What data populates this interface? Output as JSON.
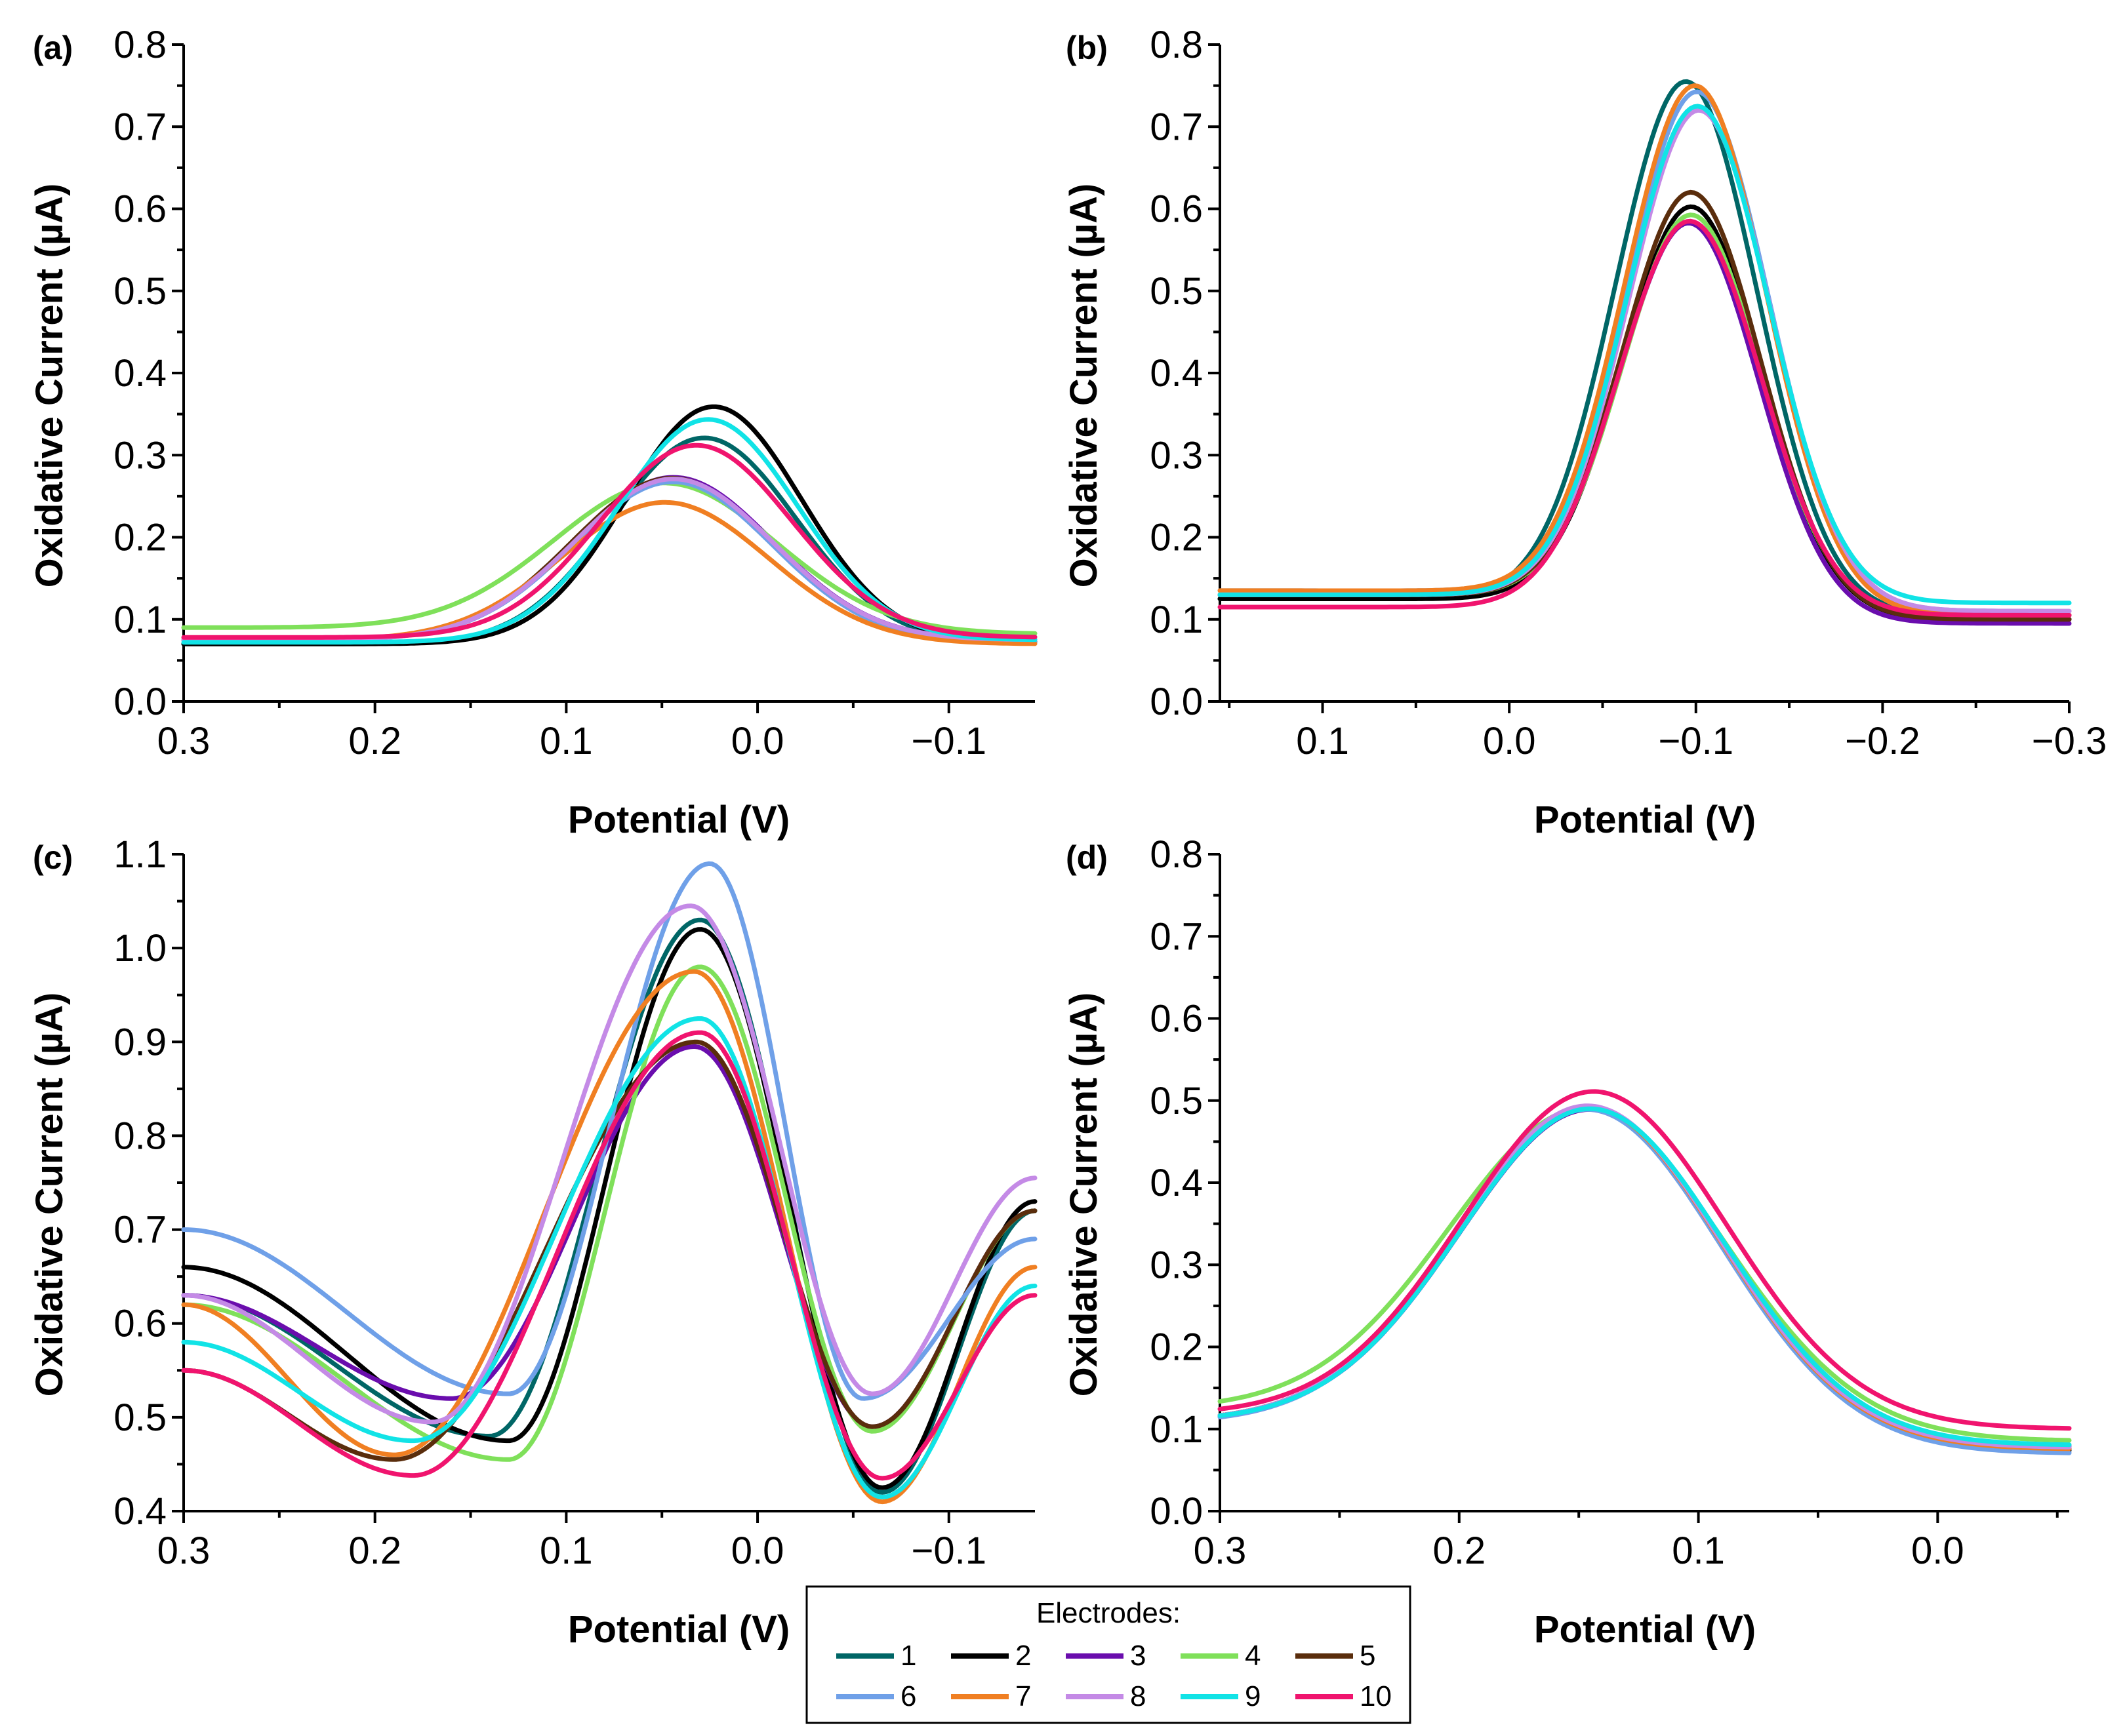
{
  "legend": {
    "title": "Electrodes:",
    "items": [
      {
        "label": "1",
        "color": "#006666"
      },
      {
        "label": "2",
        "color": "#000000"
      },
      {
        "label": "3",
        "color": "#6a0dad"
      },
      {
        "label": "4",
        "color": "#7fe05a"
      },
      {
        "label": "5",
        "color": "#5a2d0c"
      },
      {
        "label": "6",
        "color": "#6fa0e8"
      },
      {
        "label": "7",
        "color": "#f07f22"
      },
      {
        "label": "8",
        "color": "#c48ae6"
      },
      {
        "label": "9",
        "color": "#11e3e6"
      },
      {
        "label": "10",
        "color": "#f0146e"
      }
    ]
  },
  "chart_data": [
    {
      "panel": "(a)",
      "type": "line",
      "xlabel": "Potential (V)",
      "ylabel": "Oxidative Current (µA)",
      "xlim": [
        0.3,
        -0.145
      ],
      "ylim": [
        0.0,
        0.8
      ],
      "xticks": [
        "0.3",
        "0.2",
        "0.1",
        "0.0",
        "−0.1"
      ],
      "xtick_values": [
        0.3,
        0.2,
        0.1,
        0.0,
        -0.1
      ],
      "yticks": [
        "0.0",
        "0.1",
        "0.2",
        "0.3",
        "0.4",
        "0.5",
        "0.6",
        "0.7",
        "0.8"
      ],
      "ytick_values": [
        0.0,
        0.1,
        0.2,
        0.3,
        0.4,
        0.5,
        0.6,
        0.7,
        0.8
      ],
      "series": [
        {
          "name": "1",
          "baseline": 0.07,
          "tail": 0.072,
          "peak_x": 0.028,
          "height": 0.25,
          "width": 0.048
        },
        {
          "name": "2",
          "baseline": 0.07,
          "tail": 0.072,
          "peak_x": 0.023,
          "height": 0.288,
          "width": 0.046
        },
        {
          "name": "3",
          "baseline": 0.075,
          "tail": 0.075,
          "peak_x": 0.044,
          "height": 0.198,
          "width": 0.052
        },
        {
          "name": "4",
          "baseline": 0.09,
          "tail": 0.082,
          "peak_x": 0.048,
          "height": 0.18,
          "width": 0.058
        },
        {
          "name": "5",
          "baseline": 0.075,
          "tail": 0.075,
          "peak_x": 0.045,
          "height": 0.197,
          "width": 0.052
        },
        {
          "name": "6",
          "baseline": 0.075,
          "tail": 0.072,
          "peak_x": 0.044,
          "height": 0.194,
          "width": 0.052
        },
        {
          "name": "7",
          "baseline": 0.075,
          "tail": 0.07,
          "peak_x": 0.048,
          "height": 0.17,
          "width": 0.054
        },
        {
          "name": "8",
          "baseline": 0.075,
          "tail": 0.075,
          "peak_x": 0.044,
          "height": 0.196,
          "width": 0.052
        },
        {
          "name": "9",
          "baseline": 0.072,
          "tail": 0.075,
          "peak_x": 0.026,
          "height": 0.27,
          "width": 0.047
        },
        {
          "name": "10",
          "baseline": 0.078,
          "tail": 0.078,
          "peak_x": 0.032,
          "height": 0.234,
          "width": 0.05
        }
      ]
    },
    {
      "panel": "(b)",
      "type": "line",
      "xlabel": "Potential (V)",
      "ylabel": "Oxidative Current (µA)",
      "xlim": [
        0.155,
        -0.3
      ],
      "ylim": [
        0.0,
        0.8
      ],
      "xticks": [
        "0.1",
        "0.0",
        "−0.1",
        "−0.2",
        "−0.3"
      ],
      "xtick_values": [
        0.1,
        0.0,
        -0.1,
        -0.2,
        -0.3
      ],
      "yticks": [
        "0.0",
        "0.1",
        "0.2",
        "0.3",
        "0.4",
        "0.5",
        "0.6",
        "0.7",
        "0.8"
      ],
      "ytick_values": [
        0.0,
        0.1,
        0.2,
        0.3,
        0.4,
        0.5,
        0.6,
        0.7,
        0.8
      ],
      "series": [
        {
          "name": "1",
          "baseline": 0.125,
          "tail": 0.105,
          "peak_x": -0.095,
          "height": 0.64,
          "width": 0.038
        },
        {
          "name": "2",
          "baseline": 0.125,
          "tail": 0.1,
          "peak_x": -0.098,
          "height": 0.49,
          "width": 0.037
        },
        {
          "name": "3",
          "baseline": 0.13,
          "tail": 0.095,
          "peak_x": -0.097,
          "height": 0.47,
          "width": 0.037
        },
        {
          "name": "4",
          "baseline": 0.13,
          "tail": 0.105,
          "peak_x": -0.098,
          "height": 0.475,
          "width": 0.037
        },
        {
          "name": "5",
          "baseline": 0.13,
          "tail": 0.1,
          "peak_x": -0.098,
          "height": 0.505,
          "width": 0.037
        },
        {
          "name": "6",
          "baseline": 0.135,
          "tail": 0.11,
          "peak_x": -0.101,
          "height": 0.62,
          "width": 0.038
        },
        {
          "name": "7",
          "baseline": 0.135,
          "tail": 0.105,
          "peak_x": -0.1,
          "height": 0.63,
          "width": 0.038
        },
        {
          "name": "8",
          "baseline": 0.13,
          "tail": 0.11,
          "peak_x": -0.102,
          "height": 0.6,
          "width": 0.038
        },
        {
          "name": "9",
          "baseline": 0.13,
          "tail": 0.12,
          "peak_x": -0.101,
          "height": 0.6,
          "width": 0.038
        },
        {
          "name": "10",
          "baseline": 0.115,
          "tail": 0.105,
          "peak_x": -0.097,
          "height": 0.475,
          "width": 0.038
        }
      ]
    },
    {
      "panel": "(c)",
      "type": "line",
      "xlabel": "Potential (V)",
      "ylabel": "Oxidative Current (µA)",
      "xlim": [
        0.3,
        -0.145
      ],
      "ylim": [
        0.4,
        1.1
      ],
      "xticks": [
        "0.3",
        "0.2",
        "0.1",
        "0.0",
        "−0.1"
      ],
      "xtick_values": [
        0.3,
        0.2,
        0.1,
        0.0,
        -0.1
      ],
      "yticks": [
        "0.4",
        "0.5",
        "0.6",
        "0.7",
        "0.8",
        "0.9",
        "1.0",
        "1.1"
      ],
      "ytick_values": [
        0.4,
        0.5,
        0.6,
        0.7,
        0.8,
        0.9,
        1.0,
        1.1
      ],
      "series": [
        {
          "name": "1",
          "start": 0.63,
          "mid_x": 0.14,
          "mid": 0.48,
          "peak_x": 0.03,
          "peak": 1.03,
          "min_x": -0.065,
          "min": 0.42,
          "end": 0.72
        },
        {
          "name": "2",
          "start": 0.66,
          "mid_x": 0.13,
          "mid": 0.475,
          "peak_x": 0.03,
          "peak": 1.02,
          "min_x": -0.065,
          "min": 0.425,
          "end": 0.73
        },
        {
          "name": "3",
          "start": 0.63,
          "mid_x": 0.16,
          "mid": 0.52,
          "peak_x": 0.033,
          "peak": 0.895,
          "min_x": -0.06,
          "min": 0.49,
          "end": 0.72
        },
        {
          "name": "4",
          "start": 0.62,
          "mid_x": 0.13,
          "mid": 0.455,
          "peak_x": 0.03,
          "peak": 0.98,
          "min_x": -0.06,
          "min": 0.485,
          "end": 0.72
        },
        {
          "name": "5",
          "start": 0.55,
          "mid_x": 0.19,
          "mid": 0.455,
          "peak_x": 0.032,
          "peak": 0.9,
          "min_x": -0.06,
          "min": 0.49,
          "end": 0.72
        },
        {
          "name": "6",
          "start": 0.7,
          "mid_x": 0.13,
          "mid": 0.525,
          "peak_x": 0.025,
          "peak": 1.09,
          "min_x": -0.055,
          "min": 0.52,
          "end": 0.69
        },
        {
          "name": "7",
          "start": 0.62,
          "mid_x": 0.19,
          "mid": 0.46,
          "peak_x": 0.033,
          "peak": 0.975,
          "min_x": -0.065,
          "min": 0.41,
          "end": 0.66
        },
        {
          "name": "8",
          "start": 0.63,
          "mid_x": 0.17,
          "mid": 0.495,
          "peak_x": 0.035,
          "peak": 1.045,
          "min_x": -0.06,
          "min": 0.525,
          "end": 0.755
        },
        {
          "name": "9",
          "start": 0.58,
          "mid_x": 0.18,
          "mid": 0.475,
          "peak_x": 0.03,
          "peak": 0.925,
          "min_x": -0.065,
          "min": 0.415,
          "end": 0.64
        },
        {
          "name": "10",
          "start": 0.55,
          "mid_x": 0.18,
          "mid": 0.438,
          "peak_x": 0.03,
          "peak": 0.91,
          "min_x": -0.065,
          "min": 0.435,
          "end": 0.63
        }
      ]
    },
    {
      "panel": "(d)",
      "type": "line",
      "xlabel": "Potential (V)",
      "ylabel": "Oxidative Current (µA)",
      "xlim": [
        0.3,
        -0.055
      ],
      "ylim": [
        0.0,
        0.8
      ],
      "xticks": [
        "0.3",
        "0.2",
        "0.1",
        "0.0"
      ],
      "xtick_values": [
        0.3,
        0.2,
        0.1,
        0.0
      ],
      "yticks": [
        "0.0",
        "0.1",
        "0.2",
        "0.3",
        "0.4",
        "0.5",
        "0.6",
        "0.7",
        "0.8"
      ],
      "ytick_values": [
        0.0,
        0.1,
        0.2,
        0.3,
        0.4,
        0.5,
        0.6,
        0.7,
        0.8
      ],
      "series": [
        {
          "name": "1",
          "baseline": 0.11,
          "tail": 0.075,
          "peak_x": 0.145,
          "height": 0.4,
          "width": 0.055
        },
        {
          "name": "2",
          "baseline": 0.11,
          "tail": 0.073,
          "peak_x": 0.145,
          "height": 0.4,
          "width": 0.055
        },
        {
          "name": "3",
          "baseline": 0.11,
          "tail": 0.078,
          "peak_x": 0.144,
          "height": 0.395,
          "width": 0.055
        },
        {
          "name": "4",
          "baseline": 0.125,
          "tail": 0.085,
          "peak_x": 0.146,
          "height": 0.385,
          "width": 0.057
        },
        {
          "name": "5",
          "baseline": 0.11,
          "tail": 0.075,
          "peak_x": 0.145,
          "height": 0.4,
          "width": 0.055
        },
        {
          "name": "6",
          "baseline": 0.108,
          "tail": 0.07,
          "peak_x": 0.145,
          "height": 0.4,
          "width": 0.055
        },
        {
          "name": "7",
          "baseline": 0.11,
          "tail": 0.075,
          "peak_x": 0.145,
          "height": 0.4,
          "width": 0.055
        },
        {
          "name": "8",
          "baseline": 0.11,
          "tail": 0.077,
          "peak_x": 0.145,
          "height": 0.4,
          "width": 0.055
        },
        {
          "name": "9",
          "baseline": 0.11,
          "tail": 0.08,
          "peak_x": 0.144,
          "height": 0.395,
          "width": 0.055
        },
        {
          "name": "10",
          "baseline": 0.118,
          "tail": 0.1,
          "peak_x": 0.143,
          "height": 0.402,
          "width": 0.055
        }
      ]
    }
  ]
}
